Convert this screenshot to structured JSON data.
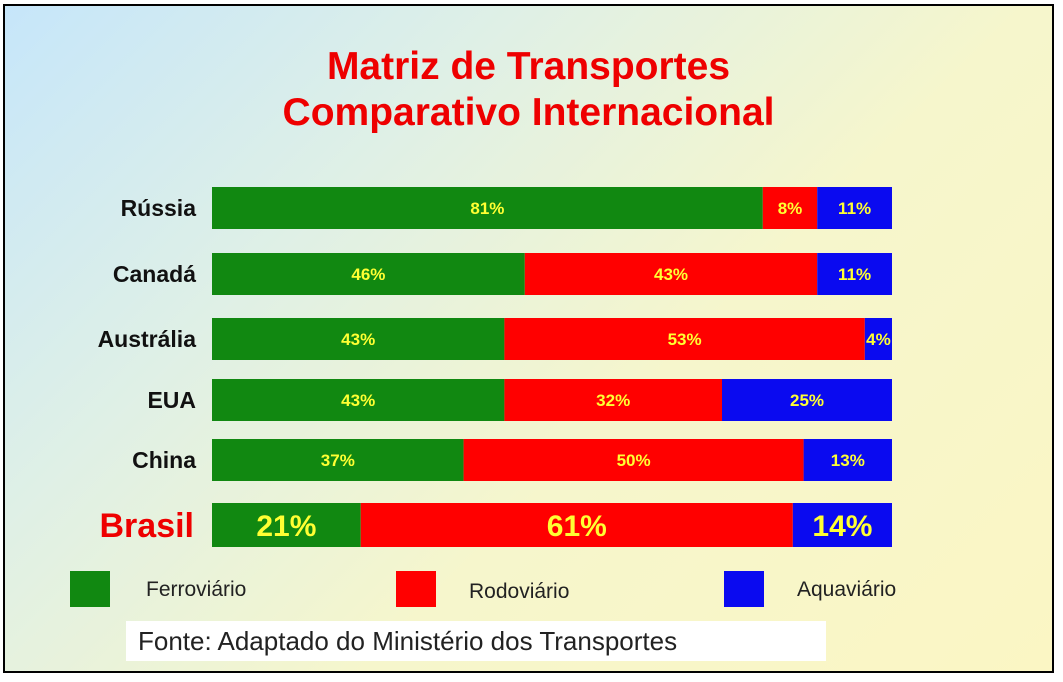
{
  "title_line1": "Matriz de Transportes",
  "title_line2": "Comparativo Internacional",
  "chart_data": {
    "type": "bar",
    "orientation": "horizontal",
    "stacked": true,
    "percent": true,
    "categories": [
      "Rússia",
      "Canadá",
      "Austrália",
      "EUA",
      "China",
      "Brasil"
    ],
    "series": [
      {
        "name": "Ferroviário",
        "color": "#118811",
        "values": [
          81,
          46,
          43,
          43,
          37,
          21
        ],
        "labels": [
          "81%",
          "46%",
          "43%",
          "43%",
          "37%",
          "21%"
        ]
      },
      {
        "name": "Rodoviário",
        "color": "#ff0000",
        "values": [
          8,
          43,
          53,
          32,
          50,
          61
        ],
        "labels": [
          "8%",
          "43%",
          "53%",
          "32%",
          "50%",
          "61%"
        ]
      },
      {
        "name": "Aquaviário",
        "color": "#0a0af0",
        "values": [
          11,
          11,
          4,
          25,
          13,
          14
        ],
        "labels": [
          "11%",
          "11%",
          "4%",
          "25%",
          "13%",
          "14%"
        ]
      }
    ],
    "legend_position": "bottom",
    "grid": false
  },
  "source": "Fonte: Adaptado do Ministério dos Transportes",
  "colors": {
    "title": "#ee0000",
    "label_text": "#ffff33",
    "highlight_category": "#ee0000"
  }
}
